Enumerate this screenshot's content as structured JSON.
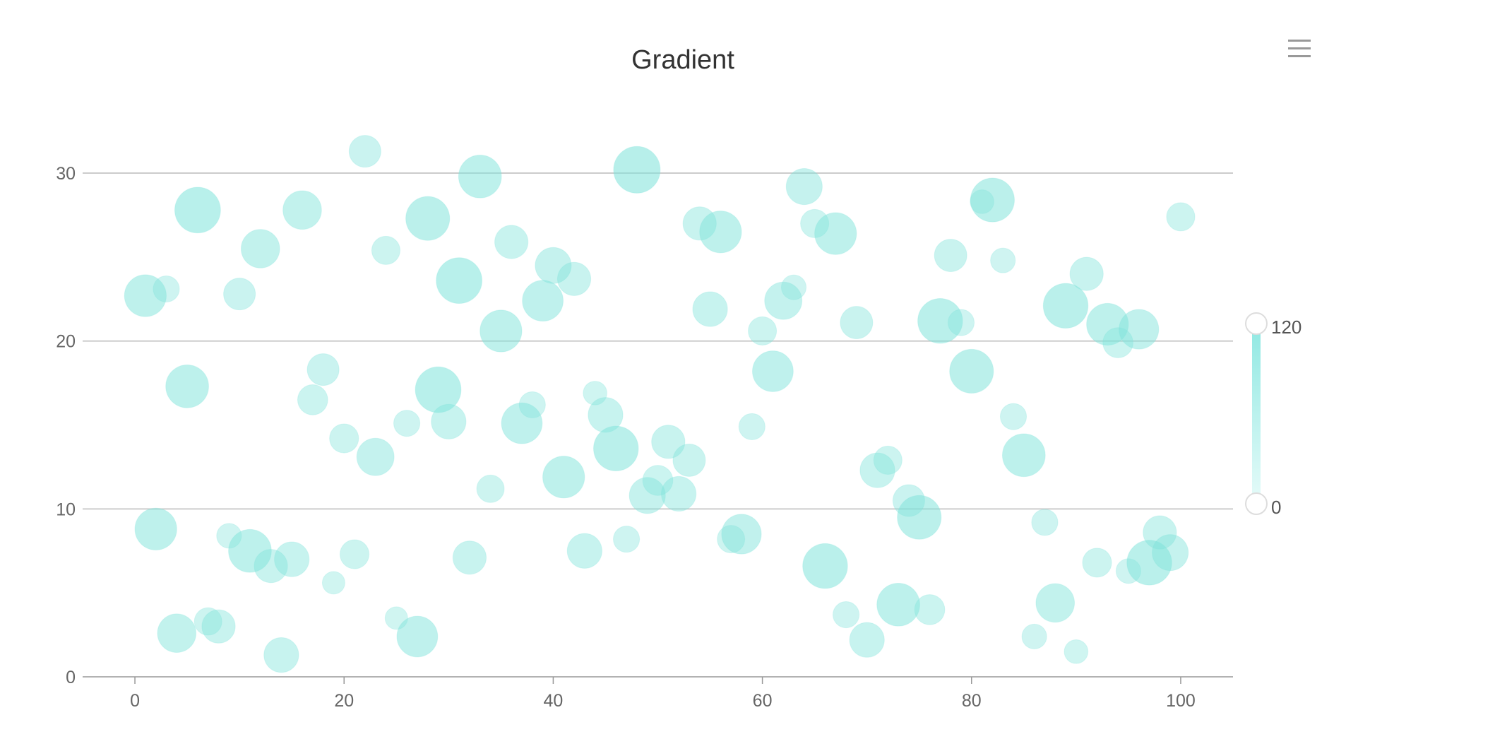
{
  "chart_data": {
    "type": "scatter",
    "subtype": "bubble",
    "title": "Gradient",
    "xlabel": "",
    "ylabel": "",
    "xlim": [
      -5,
      105
    ],
    "ylim": [
      0,
      34
    ],
    "x_ticks": [
      "0",
      "20",
      "40",
      "60",
      "80",
      "100"
    ],
    "y_ticks": [
      "0",
      "10",
      "20",
      "30"
    ],
    "grid": "horizontal",
    "visual_map": {
      "min": 0,
      "max": 120,
      "min_label": "0",
      "max_label": "120",
      "color_low": "#e6fbf9",
      "color_high": "#8fe8e2",
      "placement": "right"
    },
    "bubble_color": "#7fe3da",
    "points": [
      [
        1,
        22.7,
        70
      ],
      [
        3,
        23.1,
        15
      ],
      [
        6,
        27.8,
        90
      ],
      [
        12,
        25.5,
        55
      ],
      [
        16,
        27.8,
        55
      ],
      [
        10,
        22.8,
        30
      ],
      [
        22,
        31.3,
        30
      ],
      [
        24,
        25.4,
        20
      ],
      [
        28,
        27.3,
        80
      ],
      [
        33,
        29.8,
        75
      ],
      [
        31,
        23.6,
        90
      ],
      [
        36,
        25.9,
        35
      ],
      [
        40,
        24.5,
        45
      ],
      [
        42,
        23.7,
        35
      ],
      [
        39,
        22.4,
        65
      ],
      [
        35,
        20.6,
        70
      ],
      [
        48,
        30.2,
        95
      ],
      [
        54,
        27,
        35
      ],
      [
        56,
        26.5,
        70
      ],
      [
        64,
        29.2,
        45
      ],
      [
        65,
        27,
        20
      ],
      [
        67,
        26.4,
        70
      ],
      [
        82,
        28.4,
        80
      ],
      [
        81,
        28.3,
        10
      ],
      [
        83,
        24.8,
        12
      ],
      [
        100,
        27.4,
        20
      ],
      [
        78,
        25.1,
        32
      ],
      [
        55,
        21.9,
        40
      ],
      [
        62,
        22.4,
        50
      ],
      [
        63,
        23.2,
        12
      ],
      [
        60,
        20.6,
        20
      ],
      [
        69,
        21.1,
        32
      ],
      [
        77,
        21.2,
        85
      ],
      [
        79,
        21.1,
        15
      ],
      [
        89,
        22.1,
        85
      ],
      [
        91,
        24,
        35
      ],
      [
        93,
        21,
        70
      ],
      [
        94,
        19.9,
        25
      ],
      [
        96,
        20.7,
        60
      ],
      [
        5,
        17.3,
        75
      ],
      [
        18,
        18.3,
        30
      ],
      [
        17,
        16.5,
        25
      ],
      [
        20,
        14.2,
        22
      ],
      [
        23,
        13.1,
        50
      ],
      [
        26,
        15.1,
        15
      ],
      [
        29,
        17.1,
        90
      ],
      [
        30,
        15.2,
        40
      ],
      [
        37,
        15.1,
        65
      ],
      [
        38,
        16.2,
        15
      ],
      [
        45,
        15.6,
        40
      ],
      [
        44,
        16.9,
        10
      ],
      [
        46,
        13.6,
        85
      ],
      [
        51,
        14,
        35
      ],
      [
        53,
        12.9,
        32
      ],
      [
        41,
        11.9,
        70
      ],
      [
        34,
        11.2,
        18
      ],
      [
        49,
        10.8,
        45
      ],
      [
        50,
        11.7,
        25
      ],
      [
        52,
        10.9,
        40
      ],
      [
        59,
        14.9,
        15
      ],
      [
        61,
        18.2,
        65
      ],
      [
        80,
        18.2,
        80
      ],
      [
        84,
        15.5,
        15
      ],
      [
        85,
        13.2,
        75
      ],
      [
        71,
        12.3,
        40
      ],
      [
        72,
        12.9,
        20
      ],
      [
        74,
        10.5,
        30
      ],
      [
        75,
        9.5,
        80
      ],
      [
        2,
        8.8,
        70
      ],
      [
        9,
        8.4,
        12
      ],
      [
        11,
        7.5,
        75
      ],
      [
        13,
        6.6,
        35
      ],
      [
        15,
        7,
        40
      ],
      [
        21,
        7.3,
        22
      ],
      [
        19,
        5.6,
        8
      ],
      [
        32,
        7.1,
        35
      ],
      [
        43,
        7.5,
        40
      ],
      [
        47,
        8.2,
        15
      ],
      [
        58,
        8.5,
        60
      ],
      [
        57,
        8.2,
        18
      ],
      [
        66,
        6.6,
        85
      ],
      [
        87,
        9.2,
        15
      ],
      [
        92,
        6.8,
        22
      ],
      [
        95,
        6.3,
        12
      ],
      [
        97,
        6.8,
        85
      ],
      [
        98,
        8.6,
        35
      ],
      [
        99,
        7.4,
        45
      ],
      [
        4,
        2.6,
        55
      ],
      [
        8,
        3,
        35
      ],
      [
        7,
        3.3,
        18
      ],
      [
        14,
        1.3,
        40
      ],
      [
        25,
        3.5,
        8
      ],
      [
        27,
        2.4,
        65
      ],
      [
        68,
        3.7,
        15
      ],
      [
        70,
        2.2,
        40
      ],
      [
        73,
        4.3,
        75
      ],
      [
        76,
        4,
        25
      ],
      [
        86,
        2.4,
        12
      ],
      [
        88,
        4.4,
        55
      ],
      [
        90,
        1.5,
        10
      ]
    ]
  },
  "toolbar": {
    "menu_icon": "hamburger-menu-icon"
  }
}
